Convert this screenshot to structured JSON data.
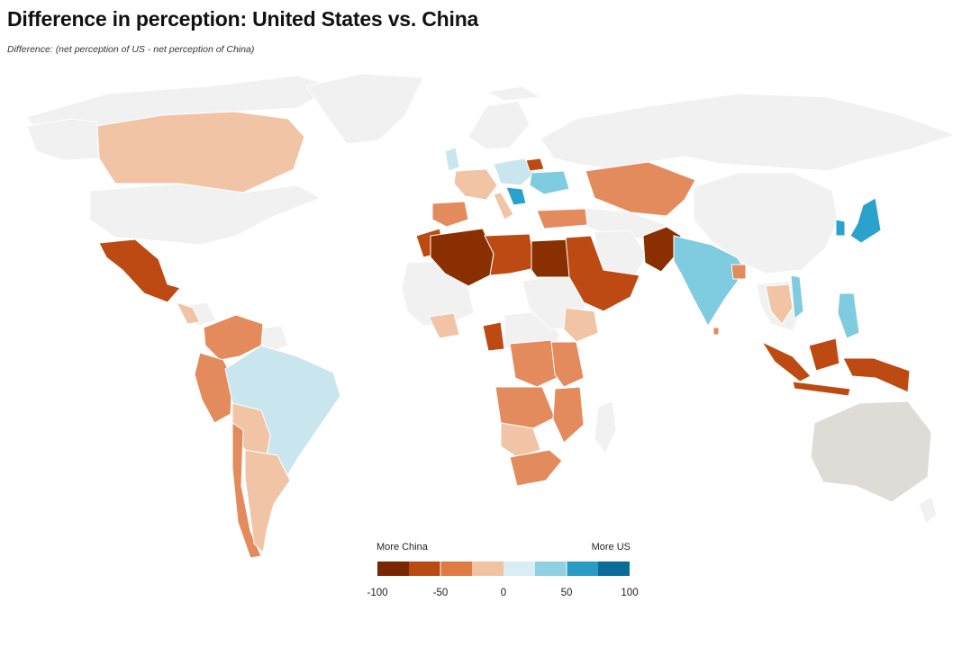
{
  "title": "Difference in perception: United States vs. China",
  "subtitle": "Difference: (net perception of US - net perception of China)",
  "legend": {
    "left_label": "More China",
    "right_label": "More US",
    "ticks": [
      "-100",
      "-50",
      "0",
      "50",
      "100"
    ],
    "ramp_colors": [
      "#7a2600",
      "#b84a12",
      "#e07a45",
      "#f2c3a3",
      "#d8eef3",
      "#8fd0e2",
      "#2a9bc2",
      "#0a6c97"
    ]
  },
  "colors": {
    "no_data": "#f1f1f1",
    "grey_region": "#dddcd6",
    "very_strong_china": "#8a3000",
    "strong_china": "#bd4a12",
    "moderate_china": "#e38b5c",
    "slight_china": "#f1c4a6",
    "slight_us": "#c9e6ef",
    "moderate_us": "#7fcbe0",
    "strong_us": "#2aa2cd"
  }
}
